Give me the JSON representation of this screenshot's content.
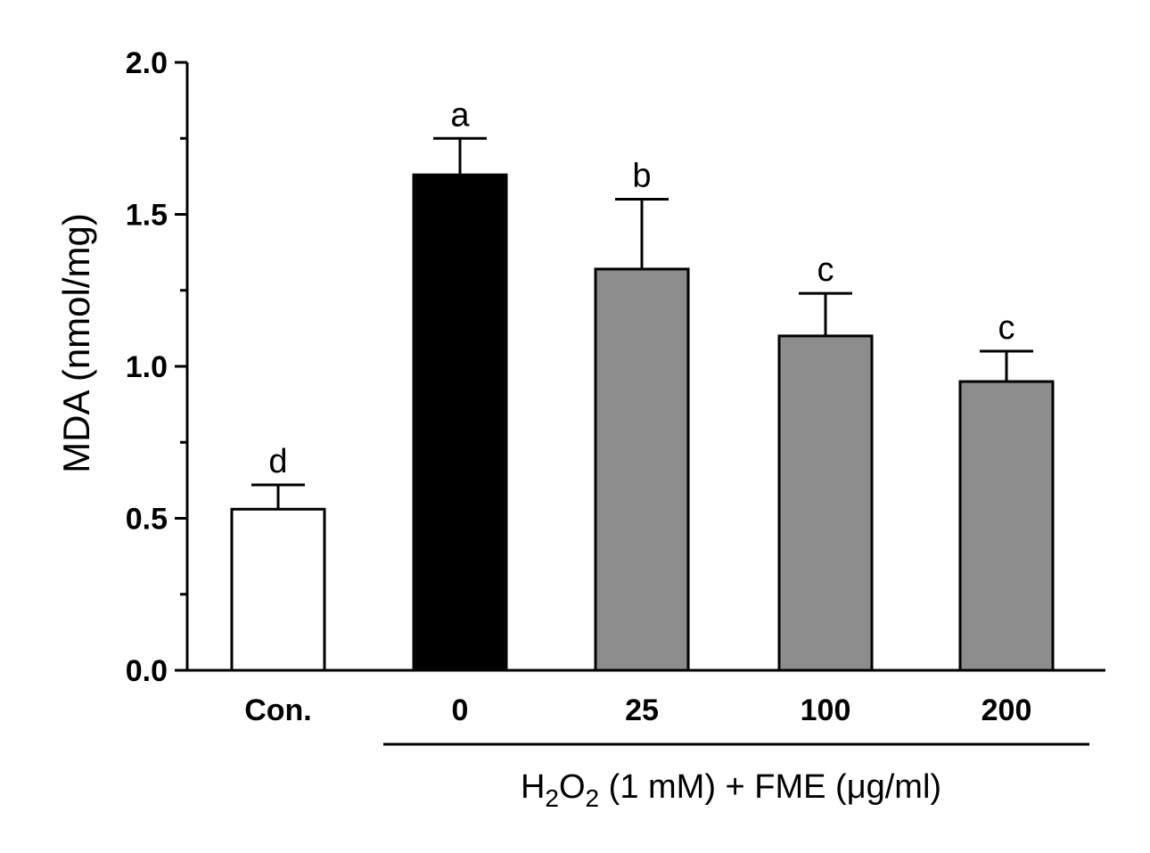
{
  "chart_data": {
    "type": "bar",
    "categories": [
      "Con.",
      "0",
      "25",
      "100",
      "200"
    ],
    "values": [
      0.53,
      1.63,
      1.32,
      1.1,
      0.95
    ],
    "errors": [
      0.08,
      0.12,
      0.23,
      0.14,
      0.1
    ],
    "significance": [
      "d",
      "a",
      "b",
      "c",
      "c"
    ],
    "bar_colors": [
      "#ffffff",
      "#000000",
      "#8c8c8c",
      "#8c8c8c",
      "#8c8c8c"
    ],
    "ylabel": "MDA (nmol/mg)",
    "ylim": [
      0,
      2.0
    ],
    "yticks": [
      "0.0",
      "0.5",
      "1.0",
      "1.5",
      "2.0"
    ],
    "group_label": {
      "prefix": "H",
      "sub1": "2",
      "mid": "O",
      "sub2": "2",
      "suffix": " (1 mM) + FME (μg/ml)"
    },
    "grid": false
  }
}
